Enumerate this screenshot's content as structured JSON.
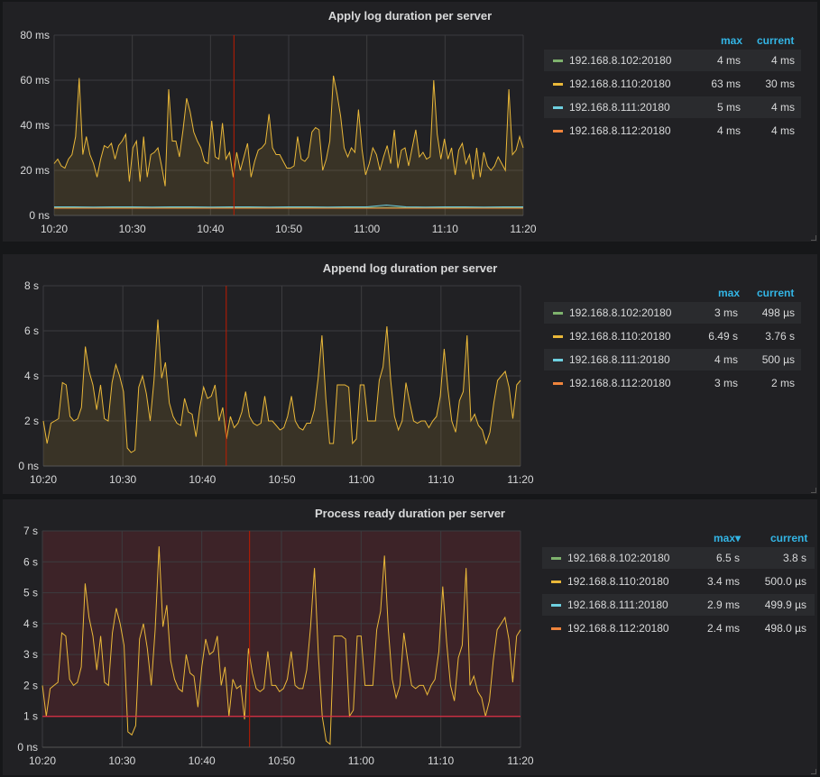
{
  "colors": {
    "s102": "#7eb26d",
    "s110": "#eab839",
    "s111": "#6ed0e0",
    "s112": "#ef843c",
    "legend_header": "#33b5e5",
    "threshold": "#e02f44",
    "marker": "#bf1b00"
  },
  "panels": [
    {
      "title": "Apply log duration per server",
      "legend": {
        "max_label": "max",
        "current_label": "current",
        "rows": [
          {
            "name": "192.168.8.102:20180",
            "max": "4 ms",
            "current": "4 ms"
          },
          {
            "name": "192.168.8.110:20180",
            "max": "63 ms",
            "current": "30 ms"
          },
          {
            "name": "192.168.8.111:20180",
            "max": "5 ms",
            "current": "4 ms"
          },
          {
            "name": "192.168.8.112:20180",
            "max": "4 ms",
            "current": "4 ms"
          }
        ]
      }
    },
    {
      "title": "Append log duration per server",
      "legend": {
        "max_label": "max",
        "current_label": "current",
        "rows": [
          {
            "name": "192.168.8.102:20180",
            "max": "3 ms",
            "current": "498 µs"
          },
          {
            "name": "192.168.8.110:20180",
            "max": "6.49 s",
            "current": "3.76 s"
          },
          {
            "name": "192.168.8.111:20180",
            "max": "4 ms",
            "current": "500 µs"
          },
          {
            "name": "192.168.8.112:20180",
            "max": "3 ms",
            "current": "2 ms"
          }
        ]
      }
    },
    {
      "title": "Process ready duration per server",
      "legend": {
        "max_label": "max▾",
        "current_label": "current",
        "rows": [
          {
            "name": "192.168.8.102:20180",
            "max": "6.5 s",
            "current": "3.8 s"
          },
          {
            "name": "192.168.8.110:20180",
            "max": "3.4 ms",
            "current": "500.0 µs"
          },
          {
            "name": "192.168.8.111:20180",
            "max": "2.9 ms",
            "current": "499.9 µs"
          },
          {
            "name": "192.168.8.112:20180",
            "max": "2.4 ms",
            "current": "498.0 µs"
          }
        ]
      }
    }
  ],
  "chart_data": [
    {
      "type": "line",
      "title": "Apply log duration per server",
      "ylim": [
        0,
        80
      ],
      "y_ticks": [
        "0 ns",
        "20 ms",
        "40 ms",
        "60 ms",
        "80 ms"
      ],
      "x_ticks": [
        "10:20",
        "10:30",
        "10:40",
        "10:50",
        "11:00",
        "11:10",
        "11:20"
      ],
      "x_range": [
        "10:20",
        "11:20"
      ],
      "marker_time": "10:43",
      "series": [
        {
          "name": "192.168.8.110:20180",
          "color_key": "s110",
          "fill": true,
          "values": [
            23,
            25,
            22,
            21,
            25,
            27,
            35,
            61,
            27,
            35,
            27,
            23,
            17,
            25,
            31,
            30,
            32,
            25,
            31,
            33,
            36,
            15,
            30,
            33,
            15,
            35,
            17,
            27,
            28,
            30,
            22,
            13,
            56,
            33,
            33,
            26,
            38,
            52,
            46,
            37,
            33,
            30,
            24,
            23,
            42,
            26,
            25,
            41,
            25,
            28,
            17,
            28,
            20,
            26,
            32,
            17,
            24,
            29,
            30,
            32,
            45,
            30,
            27,
            27,
            24,
            21,
            21,
            22,
            35,
            25,
            24,
            26,
            37,
            39,
            38,
            20,
            25,
            33,
            62,
            54,
            44,
            30,
            26,
            30,
            28,
            47,
            29,
            18,
            23,
            30,
            27,
            20,
            26,
            31,
            23,
            38,
            21,
            29,
            30,
            22,
            30,
            38,
            26,
            28,
            25,
            26,
            60,
            36,
            25,
            34,
            25,
            30,
            18,
            29,
            32,
            23,
            27,
            16,
            30,
            17,
            28,
            22,
            20,
            22,
            26,
            23,
            20,
            56,
            27,
            29,
            35,
            30
          ]
        },
        {
          "name": "192.168.8.102:20180",
          "color_key": "s102",
          "fill": false,
          "values": [
            3.5,
            3.5,
            3.5,
            3.5,
            3.5,
            3.5,
            3.5,
            3.5,
            3.5,
            3.5,
            3.5,
            3.5,
            3.5,
            3.5,
            3.5,
            3.5,
            3.5,
            3.5,
            3.5,
            3.5,
            3.5,
            3.5,
            3.5,
            3.5,
            3.5
          ]
        },
        {
          "name": "192.168.8.111:20180",
          "color_key": "s111",
          "fill": false,
          "values": [
            3.8,
            3.8,
            3.7,
            3.8,
            3.8,
            3.7,
            3.8,
            3.8,
            3.7,
            3.8,
            3.8,
            3.7,
            3.8,
            3.8,
            3.7,
            3.8,
            3.8,
            4.6,
            3.8,
            3.7,
            3.8,
            3.8,
            3.7,
            3.8,
            3.8
          ]
        },
        {
          "name": "192.168.8.112:20180",
          "color_key": "s112",
          "fill": false,
          "values": [
            3.2,
            3.2,
            3.2,
            3.2,
            3.2,
            3.2,
            3.2,
            3.2,
            3.2,
            3.2,
            3.2,
            3.2,
            3.2,
            3.2,
            3.2,
            3.2,
            3.2,
            3.2,
            3.2,
            3.2,
            3.2,
            3.2,
            3.2,
            3.2,
            3.2
          ]
        }
      ]
    },
    {
      "type": "line",
      "title": "Append log duration per server",
      "ylim": [
        0,
        8
      ],
      "y_ticks": [
        "0 ns",
        "2 s",
        "4 s",
        "6 s",
        "8 s"
      ],
      "x_ticks": [
        "10:20",
        "10:30",
        "10:40",
        "10:50",
        "11:00",
        "11:10",
        "11:20"
      ],
      "x_range": [
        "10:20",
        "11:20"
      ],
      "marker_time": "10:43",
      "series": [
        {
          "name": "192.168.8.110:20180",
          "color_key": "s110",
          "fill": true,
          "values": [
            2.0,
            1.0,
            1.9,
            2.0,
            2.1,
            3.7,
            3.6,
            2.2,
            2.0,
            2.1,
            2.6,
            5.3,
            4.2,
            3.6,
            2.5,
            3.6,
            2.1,
            2.0,
            3.7,
            4.5,
            4.0,
            3.3,
            0.8,
            0.6,
            0.7,
            3.5,
            4.0,
            3.2,
            2.0,
            3.8,
            6.5,
            3.9,
            4.6,
            2.8,
            2.2,
            1.9,
            1.8,
            3.0,
            2.4,
            2.3,
            1.3,
            2.6,
            3.5,
            3.0,
            3.1,
            3.6,
            2.0,
            2.6,
            1.2,
            2.2,
            1.7,
            1.9,
            2.4,
            3.3,
            2.2,
            1.9,
            1.8,
            1.9,
            3.1,
            2.0,
            2.0,
            1.8,
            1.6,
            1.7,
            2.2,
            3.1,
            2.0,
            1.7,
            1.6,
            1.9,
            1.9,
            2.5,
            3.9,
            5.8,
            3.0,
            1.0,
            1.0,
            3.6,
            3.6,
            3.6,
            3.5,
            1.0,
            1.2,
            3.6,
            3.6,
            2.0,
            2.0,
            2.0,
            3.8,
            4.4,
            6.2,
            3.8,
            2.2,
            1.6,
            2.0,
            3.7,
            2.8,
            2.0,
            1.9,
            2.0,
            2.0,
            1.7,
            2.0,
            2.2,
            3.1,
            5.2,
            3.4,
            2.0,
            1.5,
            2.9,
            3.3,
            5.8,
            2.0,
            2.3,
            1.8,
            1.6,
            1.0,
            1.5,
            2.8,
            3.8,
            4.0,
            4.2,
            3.5,
            2.1,
            3.6,
            3.8
          ]
        },
        {
          "name": "192.168.8.102:20180",
          "color_key": "s102",
          "fill": false,
          "values": [
            0.0,
            0.0,
            0.0,
            0.0,
            0.0
          ]
        },
        {
          "name": "192.168.8.111:20180",
          "color_key": "s111",
          "fill": false,
          "values": [
            0.0,
            0.0,
            0.0,
            0.0,
            0.0
          ]
        },
        {
          "name": "192.168.8.112:20180",
          "color_key": "s112",
          "fill": false,
          "values": [
            0.0,
            0.0,
            0.0,
            0.0,
            0.0
          ]
        }
      ]
    },
    {
      "type": "line",
      "title": "Process ready duration per server",
      "ylim": [
        0,
        7
      ],
      "y_ticks": [
        "0 ns",
        "1 s",
        "2 s",
        "3 s",
        "4 s",
        "5 s",
        "6 s",
        "7 s"
      ],
      "x_ticks": [
        "10:20",
        "10:30",
        "10:40",
        "10:50",
        "11:00",
        "11:10",
        "11:20"
      ],
      "x_range": [
        "10:20",
        "11:20"
      ],
      "marker_time": "10:46",
      "threshold": 1.0,
      "series": [
        {
          "name": "192.168.8.102:20180",
          "color_key": "s110",
          "fill": false,
          "values": [
            2.0,
            1.0,
            1.9,
            2.0,
            2.1,
            3.7,
            3.6,
            2.2,
            2.0,
            2.1,
            2.6,
            5.3,
            4.2,
            3.6,
            2.5,
            3.6,
            2.1,
            2.0,
            3.7,
            4.5,
            4.0,
            3.3,
            0.5,
            0.4,
            0.7,
            3.5,
            4.0,
            3.2,
            2.0,
            3.8,
            6.5,
            3.9,
            4.6,
            2.8,
            2.2,
            1.9,
            1.8,
            3.0,
            2.4,
            2.3,
            1.3,
            2.6,
            3.5,
            3.0,
            3.1,
            3.6,
            2.0,
            2.6,
            1.0,
            2.2,
            1.9,
            2.0,
            0.9,
            3.2,
            2.4,
            1.9,
            1.8,
            1.9,
            3.1,
            2.0,
            2.0,
            1.8,
            1.9,
            2.2,
            3.1,
            2.0,
            1.9,
            1.9,
            2.5,
            3.9,
            5.8,
            3.0,
            1.0,
            0.2,
            0.1,
            3.6,
            3.6,
            3.6,
            3.5,
            1.0,
            1.2,
            3.6,
            3.6,
            2.0,
            2.0,
            2.0,
            3.8,
            4.4,
            6.2,
            3.8,
            2.2,
            1.6,
            2.0,
            3.7,
            2.8,
            2.0,
            1.9,
            2.0,
            2.0,
            1.7,
            2.0,
            2.2,
            3.1,
            5.2,
            3.4,
            2.0,
            1.5,
            2.9,
            3.3,
            5.8,
            2.0,
            2.3,
            1.8,
            1.6,
            1.0,
            1.5,
            2.8,
            3.8,
            4.0,
            4.2,
            3.5,
            2.1,
            3.6,
            3.8
          ]
        },
        {
          "name": "192.168.8.110:20180",
          "color_key": "s102",
          "fill": false,
          "values": [
            0.0,
            0.0,
            0.0,
            0.0,
            0.0
          ]
        },
        {
          "name": "192.168.8.111:20180",
          "color_key": "s111",
          "fill": false,
          "values": [
            0.0,
            0.0,
            0.0,
            0.0,
            0.0
          ]
        },
        {
          "name": "192.168.8.112:20180",
          "color_key": "s112",
          "fill": false,
          "values": [
            0.0,
            0.0,
            0.0,
            0.0,
            0.0
          ]
        }
      ]
    }
  ]
}
